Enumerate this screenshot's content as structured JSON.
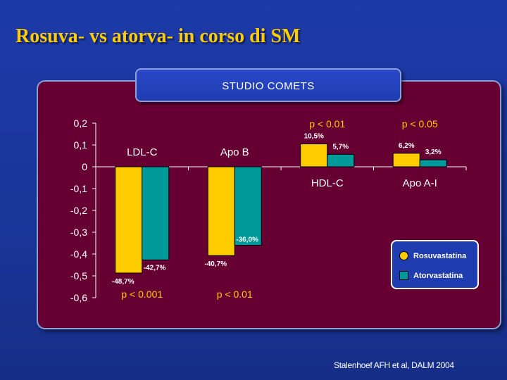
{
  "slide": {
    "title": "Rosuva- vs atorva- in corso di SM",
    "study_label": "STUDIO COMETS",
    "footnote": "Stalenhoef AFH et al, DALM 2004"
  },
  "colors": {
    "rosuvastatina": "#ffcc00",
    "atorvastatina": "#009999",
    "panel": "#660033",
    "pvalue": "#ffcc00"
  },
  "chart_data": {
    "type": "bar",
    "categories": [
      "LDL-C",
      "Apo B",
      "HDL-C",
      "Apo A-I"
    ],
    "series": [
      {
        "name": "Rosuvastatina",
        "values": [
          -0.487,
          -0.407,
          0.105,
          0.062
        ],
        "labels": [
          "-48,7%",
          "-40,7%",
          "10,5%",
          "6,2%"
        ]
      },
      {
        "name": "Atorvastatina",
        "values": [
          -0.427,
          -0.36,
          0.057,
          0.032
        ],
        "labels": [
          "-42,7%",
          "-36,0%",
          "5,7%",
          "3,2%"
        ]
      }
    ],
    "p_values": [
      "p < 0.001",
      "p < 0.01",
      "p < 0.01",
      "p < 0.05"
    ],
    "y_ticks": [
      "0,2",
      "0,1",
      "0",
      "-0,1",
      "-0,2",
      "-0,3",
      "-0,4",
      "-0,5",
      "-0,6"
    ],
    "ylim": [
      -0.6,
      0.2
    ],
    "legend_position": "right",
    "grid": false
  }
}
